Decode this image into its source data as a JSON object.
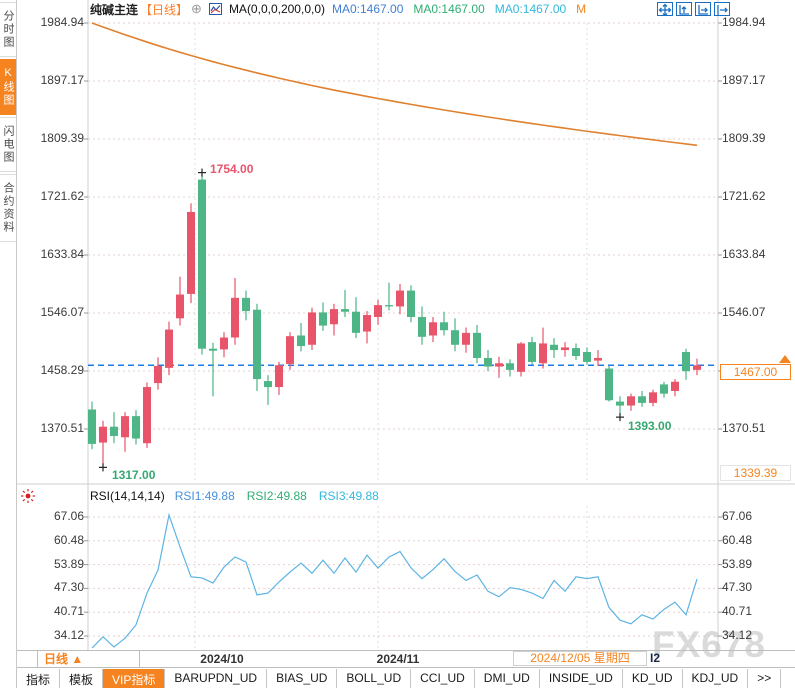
{
  "app": {
    "watermark": "FX678"
  },
  "sidebar": {
    "items": [
      {
        "label": "分时图",
        "active": false
      },
      {
        "label": "K线图",
        "active": true
      },
      {
        "label": "闪电图",
        "active": false
      },
      {
        "label": "合约资料",
        "active": false
      }
    ]
  },
  "header": {
    "title": "纯碱主连",
    "period_tag": "【日线】",
    "add_icon": "⊕",
    "ma_formula": "MA(0,0,0,200,0,0)",
    "ma_values": [
      {
        "text": "MA0:1467.00",
        "color": "#3f7fd4"
      },
      {
        "text": "MA0:1467.00",
        "color": "#2fae72"
      },
      {
        "text": "MA0:1467.00",
        "color": "#33b9dd"
      },
      {
        "text": "M",
        "color": "#f5831f"
      }
    ],
    "toolbar_icons": [
      "pan-icon",
      "y-axis-zoom-icon",
      "x-axis-zoom-icon",
      "pane-shift-icon"
    ]
  },
  "price_pane": {
    "last_price_label": "1467.00",
    "range_low_label": "1339.39",
    "high_annotation": "1754.00",
    "low_annotation_1": "1317.00",
    "low_annotation_2": "1393.00"
  },
  "rsi_pane": {
    "formula": "RSI(14,14,14)",
    "values": [
      {
        "text": "RSI1:49.88",
        "color": "#4a90d9"
      },
      {
        "text": "RSI2:49.88",
        "color": "#2fae72"
      },
      {
        "text": "RSI3:49.88",
        "color": "#33b9dd"
      }
    ]
  },
  "xaxis": {
    "period_label": "日线",
    "period_arrow": "▲",
    "months": [
      "2024/10",
      "2024/11"
    ],
    "date_label": "2024/12/05 星期四",
    "suffix": "I2"
  },
  "toolbar": {
    "items": [
      {
        "label": "指标",
        "vip": false
      },
      {
        "label": "模板",
        "vip": false
      },
      {
        "label": "VIP指标",
        "vip": true
      },
      {
        "label": "BARUPDN_UD",
        "vip": false
      },
      {
        "label": "BIAS_UD",
        "vip": false
      },
      {
        "label": "BOLL_UD",
        "vip": false
      },
      {
        "label": "CCI_UD",
        "vip": false
      },
      {
        "label": "DMI_UD",
        "vip": false
      },
      {
        "label": "INSIDE_UD",
        "vip": false
      },
      {
        "label": "KD_UD",
        "vip": false
      },
      {
        "label": "KDJ_UD",
        "vip": false
      },
      {
        "label": ">>",
        "vip": false
      }
    ]
  },
  "colors": {
    "up": "#e8556a",
    "down": "#4eb586",
    "ma_line": "#e0812f",
    "rsi_line": "#5db4e4",
    "accent_orange": "#f5831f",
    "dashed_line_blue": "#1a7ce8",
    "grid_dotted": "#e6cfcf",
    "grid_vertical": "#dcdcdc",
    "annotation_red": "#e8546b",
    "annotation_green": "#35a871",
    "axis_text": "#3a3a3a",
    "icon_blue": "#1a6fc4",
    "boundary_gray": "#cfcfcf"
  },
  "chart_data": {
    "type": "candlestick",
    "title": "纯碱主连 日线",
    "x_axis": {
      "month_labels": [
        "2024/10",
        "2024/11"
      ],
      "cursor_date": "2024/12/05 星期四"
    },
    "panes": [
      {
        "name": "price",
        "ticks": [
          1984.94,
          1897.17,
          1809.39,
          1721.62,
          1633.84,
          1546.07,
          1458.29,
          1370.51
        ],
        "series": [
          {
            "name": "日K",
            "type": "candlestick",
            "ohlc": [
              [
                1400,
                1412,
                1340,
                1348
              ],
              [
                1350,
                1383,
                1317,
                1374
              ],
              [
                1374,
                1396,
                1349,
                1360
              ],
              [
                1358,
                1396,
                1336,
                1390
              ],
              [
                1390,
                1399,
                1347,
                1356
              ],
              [
                1349,
                1441,
                1342,
                1434
              ],
              [
                1440,
                1479,
                1430,
                1466
              ],
              [
                1463,
                1533,
                1452,
                1521
              ],
              [
                1538,
                1601,
                1527,
                1574
              ],
              [
                1575,
                1712,
                1561,
                1699
              ],
              [
                1748,
                1754,
                1483,
                1492
              ],
              [
                1492,
                1501,
                1420,
                1489
              ],
              [
                1491,
                1517,
                1479,
                1509
              ],
              [
                1509,
                1599,
                1498,
                1569
              ],
              [
                1569,
                1580,
                1535,
                1549
              ],
              [
                1551,
                1560,
                1428,
                1446
              ],
              [
                1443,
                1452,
                1407,
                1434
              ],
              [
                1434,
                1472,
                1422,
                1467
              ],
              [
                1469,
                1517,
                1460,
                1511
              ],
              [
                1512,
                1531,
                1488,
                1496
              ],
              [
                1498,
                1554,
                1490,
                1547
              ],
              [
                1547,
                1562,
                1519,
                1527
              ],
              [
                1529,
                1560,
                1512,
                1552
              ],
              [
                1552,
                1581,
                1540,
                1548
              ],
              [
                1548,
                1570,
                1508,
                1516
              ],
              [
                1518,
                1549,
                1500,
                1543
              ],
              [
                1540,
                1566,
                1528,
                1558
              ],
              [
                1558,
                1592,
                1550,
                1556
              ],
              [
                1556,
                1590,
                1544,
                1580
              ],
              [
                1580,
                1588,
                1532,
                1540
              ],
              [
                1540,
                1556,
                1498,
                1510
              ],
              [
                1512,
                1540,
                1502,
                1532
              ],
              [
                1532,
                1548,
                1512,
                1520
              ],
              [
                1520,
                1538,
                1488,
                1498
              ],
              [
                1498,
                1524,
                1486,
                1516
              ],
              [
                1516,
                1528,
                1470,
                1478
              ],
              [
                1478,
                1490,
                1458,
                1465
              ],
              [
                1465,
                1480,
                1448,
                1470
              ],
              [
                1470,
                1476,
                1450,
                1460
              ],
              [
                1457,
                1502,
                1450,
                1500
              ],
              [
                1502,
                1510,
                1468,
                1472
              ],
              [
                1470,
                1524,
                1462,
                1500
              ],
              [
                1498,
                1508,
                1478,
                1490
              ],
              [
                1490,
                1502,
                1480,
                1494
              ],
              [
                1493,
                1500,
                1475,
                1481
              ],
              [
                1487,
                1494,
                1468,
                1472
              ],
              [
                1474,
                1490,
                1466,
                1478
              ],
              [
                1462,
                1466,
                1412,
                1414
              ],
              [
                1412,
                1420,
                1393,
                1406
              ],
              [
                1406,
                1424,
                1398,
                1420
              ],
              [
                1420,
                1428,
                1404,
                1410
              ],
              [
                1410,
                1430,
                1405,
                1426
              ],
              [
                1438,
                1442,
                1418,
                1424
              ],
              [
                1428,
                1446,
                1420,
                1442
              ],
              [
                1487,
                1492,
                1445,
                1458
              ],
              [
                1460,
                1477,
                1452,
                1467
              ]
            ]
          },
          {
            "name": "MA200",
            "type": "line",
            "values": [
              1984.9,
              1978.9,
              1973.0,
              1967.2,
              1961.6,
              1956.1,
              1950.8,
              1945.6,
              1940.6,
              1935.7,
              1931.0,
              1926.4,
              1922.0,
              1917.7,
              1913.5,
              1909.4,
              1905.4,
              1901.5,
              1897.7,
              1894.0,
              1890.4,
              1886.9,
              1883.5,
              1880.2,
              1877.0,
              1873.8,
              1870.7,
              1867.7,
              1864.7,
              1861.8,
              1858.9,
              1856.1,
              1853.3,
              1850.6,
              1847.9,
              1845.3,
              1842.7,
              1840.2,
              1837.7,
              1835.2,
              1832.8,
              1830.4,
              1828.0,
              1825.7,
              1823.4,
              1821.1,
              1818.9,
              1816.7,
              1814.5,
              1812.3,
              1810.2,
              1808.1,
              1806.0,
              1803.9,
              1801.9,
              1799.9
            ]
          },
          {
            "name": "最新价",
            "type": "hline",
            "value": 1467.0
          }
        ],
        "annotations": [
          {
            "type": "high-marker",
            "index": 10,
            "value": 1754.0,
            "label": "1754.00"
          },
          {
            "type": "low-marker",
            "index": 1,
            "value": 1317.0,
            "label": "1317.00"
          },
          {
            "type": "low-marker",
            "index": 48,
            "value": 1393.0,
            "label": "1393.00"
          }
        ]
      },
      {
        "name": "rsi",
        "ticks": [
          67.06,
          60.48,
          53.89,
          47.3,
          40.71,
          34.12
        ],
        "series": [
          {
            "name": "RSI1",
            "type": "line",
            "values": [
              30.8,
              33.9,
              31.1,
              33.5,
              37.2,
              46.0,
              52.4,
              67.6,
              58.8,
              50.5,
              50.2,
              48.8,
              53.2,
              56.0,
              54.6,
              45.5,
              46.0,
              49.1,
              51.8,
              54.3,
              51.5,
              55.1,
              51.5,
              55.7,
              51.8,
              56.5,
              52.9,
              56.0,
              57.5,
              53.0,
              50.0,
              52.5,
              55.5,
              52.0,
              49.5,
              51.0,
              46.5,
              45.0,
              47.5,
              47.0,
              46.0,
              44.5,
              49.5,
              46.5,
              50.5,
              50.0,
              50.5,
              42.0,
              38.5,
              37.5,
              40.0,
              38.8,
              41.5,
              43.5,
              40.0,
              49.88
            ]
          }
        ]
      }
    ]
  }
}
